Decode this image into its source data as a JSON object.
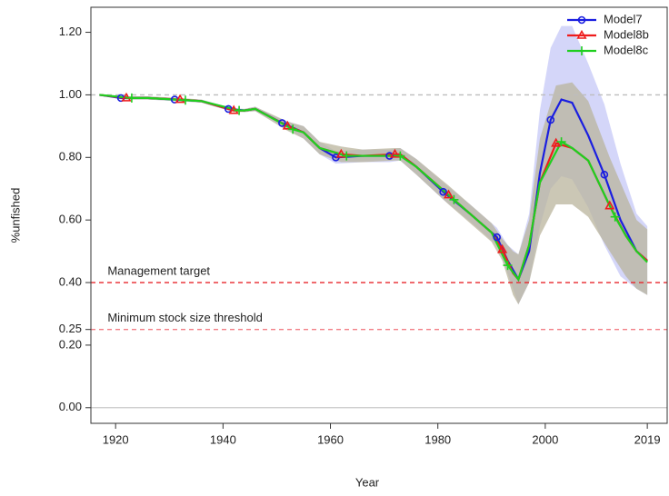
{
  "chart_data": {
    "type": "line",
    "x_label": "Year",
    "y_label": "%unfished",
    "xlim": [
      1915.4,
      2022.7
    ],
    "ylim": [
      -0.05,
      1.28
    ],
    "xticks": [
      1920,
      1940,
      1960,
      1980,
      2000,
      2019
    ],
    "yticks": [
      {
        "value": 0,
        "label": "0.00"
      },
      {
        "value": 0.2,
        "label": "0.20"
      },
      {
        "value": 0.25,
        "label": "0.25"
      },
      {
        "value": 0.4,
        "label": "0.40"
      },
      {
        "value": 0.6,
        "label": "0.60"
      },
      {
        "value": 0.8,
        "label": "0.80"
      },
      {
        "value": 1,
        "label": "1.00"
      },
      {
        "value": 1.2,
        "label": "1.20"
      }
    ],
    "legend": "top-right",
    "reference_lines": [
      {
        "value": 1,
        "color": "#bdbdbd",
        "dashed": true
      },
      {
        "value": 0.4,
        "color": "#e8262b",
        "dashed": true,
        "label": "Management target"
      },
      {
        "value": 0.25,
        "color": "#f27f86",
        "dashed": true,
        "label": "Minimum stock size threshold"
      },
      {
        "value": 0,
        "color": "#c8c8c8",
        "dashed": false
      }
    ],
    "series": [
      {
        "name": "Model7",
        "color": "#1a1ee0",
        "marker": "circle",
        "band_color": "#c9ccf7",
        "x": [
          1917,
          1921,
          1926,
          1931,
          1936,
          1941,
          1944,
          1946,
          1951,
          1955,
          1958,
          1961,
          1966,
          1971,
          1973,
          1976,
          1981,
          1986,
          1991,
          1993,
          1995,
          1997,
          1999,
          2001,
          2003,
          2005,
          2008,
          2011,
          2014,
          2017,
          2019
        ],
        "values": [
          1.0,
          0.99,
          0.99,
          0.985,
          0.98,
          0.955,
          0.95,
          0.955,
          0.91,
          0.88,
          0.83,
          0.8,
          0.805,
          0.805,
          0.81,
          0.77,
          0.69,
          0.62,
          0.545,
          0.47,
          0.41,
          0.5,
          0.75,
          0.92,
          0.985,
          0.975,
          0.87,
          0.745,
          0.6,
          0.5,
          0.47
        ],
        "lower": [
          1.0,
          0.985,
          0.985,
          0.98,
          0.975,
          0.95,
          0.945,
          0.948,
          0.9,
          0.86,
          0.81,
          0.78,
          0.785,
          0.785,
          0.79,
          0.745,
          0.665,
          0.595,
          0.52,
          0.43,
          0.33,
          0.4,
          0.58,
          0.7,
          0.74,
          0.73,
          0.64,
          0.52,
          0.42,
          0.38,
          0.36
        ],
        "upper": [
          1.0,
          0.995,
          0.995,
          0.99,
          0.985,
          0.96,
          0.955,
          0.962,
          0.92,
          0.9,
          0.85,
          0.82,
          0.825,
          0.825,
          0.83,
          0.795,
          0.72,
          0.65,
          0.575,
          0.52,
          0.49,
          0.62,
          0.95,
          1.15,
          1.22,
          1.22,
          1.1,
          0.97,
          0.78,
          0.62,
          0.58
        ]
      },
      {
        "name": "Model8b",
        "color": "#ee1c1c",
        "marker": "triangle",
        "band_color": "#b9b49c",
        "x": [
          1917,
          1922,
          1926,
          1932,
          1936,
          1942,
          1944,
          1946,
          1952,
          1955,
          1958,
          1962,
          1966,
          1972,
          1973,
          1976,
          1982,
          1986,
          1990,
          1992,
          1994,
          1995,
          1997,
          1999,
          2002,
          2005,
          2008,
          2012,
          2015,
          2017,
          2019
        ],
        "values": [
          1.0,
          0.99,
          0.99,
          0.985,
          0.98,
          0.95,
          0.95,
          0.955,
          0.9,
          0.88,
          0.83,
          0.81,
          0.805,
          0.81,
          0.81,
          0.77,
          0.68,
          0.62,
          0.56,
          0.505,
          0.43,
          0.41,
          0.52,
          0.72,
          0.845,
          0.83,
          0.79,
          0.645,
          0.55,
          0.5,
          0.47
        ],
        "lower": [
          1.0,
          0.985,
          0.985,
          0.98,
          0.975,
          0.945,
          0.945,
          0.948,
          0.885,
          0.86,
          0.81,
          0.785,
          0.785,
          0.79,
          0.79,
          0.745,
          0.65,
          0.59,
          0.53,
          0.47,
          0.36,
          0.33,
          0.4,
          0.55,
          0.65,
          0.65,
          0.61,
          0.5,
          0.42,
          0.38,
          0.36
        ],
        "upper": [
          1.0,
          0.995,
          0.995,
          0.99,
          0.985,
          0.955,
          0.955,
          0.962,
          0.915,
          0.9,
          0.85,
          0.835,
          0.825,
          0.83,
          0.83,
          0.795,
          0.71,
          0.65,
          0.59,
          0.54,
          0.5,
          0.49,
          0.6,
          0.86,
          1.03,
          1.04,
          0.98,
          0.8,
          0.68,
          0.6,
          0.57
        ]
      },
      {
        "name": "Model8c",
        "color": "#1fcf1f",
        "marker": "plus",
        "x": [
          1917,
          1923,
          1926,
          1933,
          1936,
          1943,
          1944,
          1946,
          1953,
          1955,
          1958,
          1963,
          1966,
          1973,
          1976,
          1983,
          1986,
          1990,
          1993,
          1995,
          1997,
          1999,
          2003,
          2005,
          2008,
          2013,
          2015,
          2017,
          2019
        ],
        "values": [
          1.0,
          0.99,
          0.99,
          0.983,
          0.98,
          0.95,
          0.95,
          0.955,
          0.89,
          0.88,
          0.83,
          0.805,
          0.805,
          0.805,
          0.77,
          0.665,
          0.62,
          0.56,
          0.455,
          0.41,
          0.52,
          0.72,
          0.85,
          0.83,
          0.79,
          0.61,
          0.55,
          0.5,
          0.465
        ]
      }
    ]
  }
}
